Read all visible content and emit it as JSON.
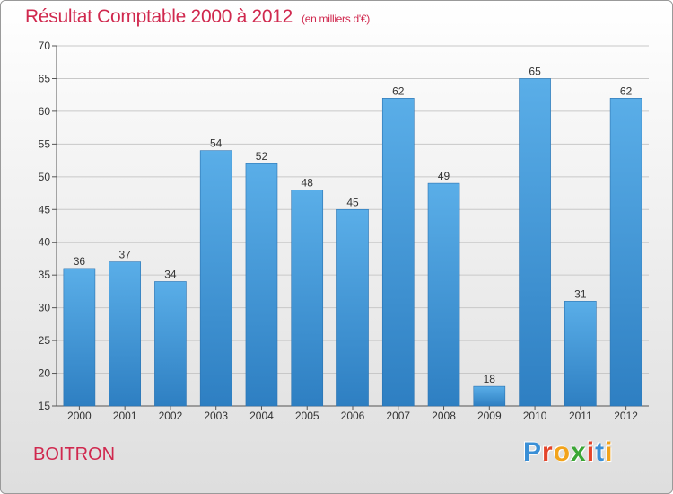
{
  "header": {
    "title": "Résultat Comptable 2000 à 2012",
    "subtitle": "(en milliers d'€)"
  },
  "footer": {
    "commune": "BOITRON",
    "brand_letters": [
      "P",
      "r",
      "o",
      "x",
      "i",
      "t",
      "i"
    ],
    "brand_colors": [
      "#3a8fd6",
      "#e4452b",
      "#f2a31b",
      "#3aa635",
      "#e4452b",
      "#3a8fd6",
      "#f2a31b"
    ]
  },
  "colors": {
    "title": "#d0284e",
    "bar_top": "#5aaee8",
    "bar_bottom": "#2e7fc2",
    "grid": "#c8c8c8"
  },
  "chart_data": {
    "type": "bar",
    "title": "Résultat Comptable 2000 à 2012",
    "subtitle": "(en milliers d'€)",
    "categories": [
      "2000",
      "2001",
      "2002",
      "2003",
      "2004",
      "2005",
      "2006",
      "2007",
      "2008",
      "2009",
      "2010",
      "2011",
      "2012"
    ],
    "values": [
      36,
      37,
      34,
      54,
      52,
      48,
      45,
      62,
      49,
      18,
      65,
      31,
      62
    ],
    "ylim": [
      15,
      70
    ],
    "yticks": [
      15,
      20,
      25,
      30,
      35,
      40,
      45,
      50,
      55,
      60,
      65,
      70
    ],
    "grid": true,
    "data_labels": true
  }
}
